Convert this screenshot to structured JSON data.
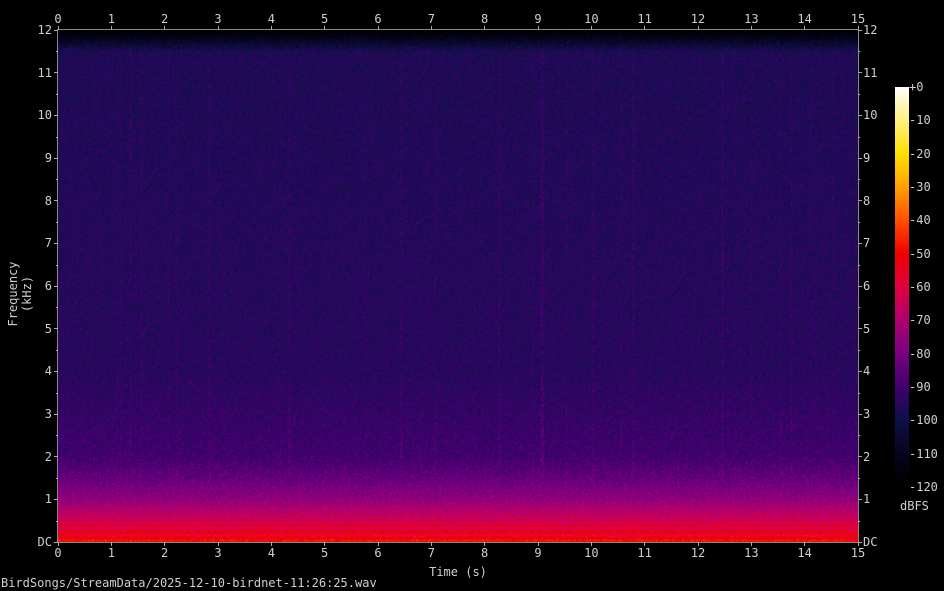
{
  "chart_data": {
    "type": "heatmap",
    "title": "",
    "xlabel": "Time (s)",
    "ylabel": "Frequency (kHz)",
    "xlim": [
      0,
      15
    ],
    "ylim": [
      0,
      12
    ],
    "x_ticks": [
      "0",
      "1",
      "2",
      "3",
      "4",
      "5",
      "6",
      "7",
      "8",
      "9",
      "10",
      "11",
      "12",
      "13",
      "14",
      "15"
    ],
    "y_ticks": [
      "DC",
      "1",
      "2",
      "3",
      "4",
      "5",
      "6",
      "7",
      "8",
      "9",
      "10",
      "11",
      "12"
    ],
    "colorbar": {
      "label": "dBFS",
      "range": [
        -120,
        0
      ],
      "ticks": [
        "+0",
        "-10",
        "-20",
        "-30",
        "-40",
        "-50",
        "-60",
        "-70",
        "-80",
        "-90",
        "-100",
        "-110",
        "-120"
      ],
      "colors": [
        "#ffffff",
        "#fff080",
        "#ffe000",
        "#ffa000",
        "#ff5000",
        "#f00000",
        "#e00040",
        "#b00070",
        "#7a0080",
        "#400070",
        "#10104a",
        "#050520",
        "#000000"
      ]
    },
    "energy_profile_dbfs": [
      {
        "khz": 0,
        "db": -50
      },
      {
        "khz": 0.3,
        "db": -58
      },
      {
        "khz": 1.0,
        "db": -76
      },
      {
        "khz": 1.5,
        "db": -84
      },
      {
        "khz": 2.0,
        "db": -90
      },
      {
        "khz": 4.0,
        "db": -95
      },
      {
        "khz": 11.5,
        "db": -97
      },
      {
        "khz": 12,
        "db": -120
      }
    ]
  },
  "filename": "BirdSongs/StreamData/2025-12-10-birdnet-11:26:25.wav"
}
